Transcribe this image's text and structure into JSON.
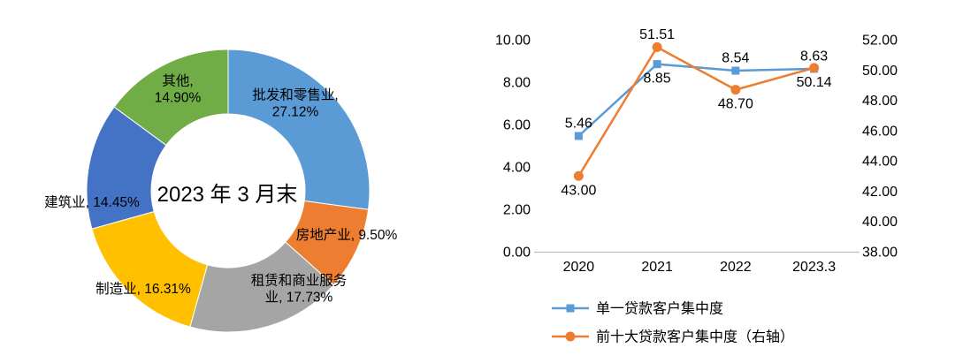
{
  "page": {
    "background": "#ffffff"
  },
  "chart_data": [
    {
      "type": "pie",
      "subtype": "donut",
      "center_label": "2023 年 3 月末",
      "legend_position": "none",
      "segments": [
        {
          "label": "批发和零售业",
          "value": 27.12,
          "color": "#5B9BD5",
          "label_lines": [
            "批发和零售业,",
            "27.12%"
          ]
        },
        {
          "label": "房地产业",
          "value": 9.5,
          "color": "#ED7D31",
          "label_lines": [
            "房地产业, 9.50%"
          ]
        },
        {
          "label": "租赁和商业服务业",
          "value": 17.73,
          "color": "#A5A5A5",
          "label_lines": [
            "租赁和商业服务",
            "业, 17.73%"
          ]
        },
        {
          "label": "制造业",
          "value": 16.31,
          "color": "#FFC000",
          "label_lines": [
            "制造业, 16.31%"
          ]
        },
        {
          "label": "建筑业",
          "value": 14.45,
          "color": "#4472C4",
          "label_lines": [
            "建筑业, 14.45%"
          ]
        },
        {
          "label": "其他",
          "value": 14.9,
          "color": "#70AD47",
          "label_lines": [
            "其他,",
            "14.90%"
          ]
        }
      ]
    },
    {
      "type": "line",
      "categories": [
        "2020",
        "2021",
        "2022",
        "2023.3"
      ],
      "left_axis": {
        "min": 0,
        "max": 10,
        "step": 2,
        "ticks": [
          "10.00",
          "8.00",
          "6.00",
          "4.00",
          "2.00",
          "0.00"
        ]
      },
      "right_axis": {
        "min": 38,
        "max": 52,
        "step": 2,
        "ticks": [
          "52.00",
          "50.00",
          "48.00",
          "46.00",
          "44.00",
          "42.00",
          "40.00",
          "38.00"
        ]
      },
      "grid": "off",
      "legend_position": "bottom",
      "series": [
        {
          "name": "单一贷款客户集中度",
          "axis": "left",
          "color": "#5B9BD5",
          "marker": "square",
          "values": [
            5.46,
            8.85,
            8.54,
            8.63
          ],
          "labels": [
            "5.46",
            "8.85",
            "8.54",
            "8.63"
          ],
          "label_pos": [
            "above",
            "below",
            "above",
            "above"
          ]
        },
        {
          "name": "前十大贷款客户集中度（右轴）",
          "axis": "right",
          "color": "#ED7D31",
          "marker": "circle",
          "values": [
            43.0,
            51.51,
            48.7,
            50.14
          ],
          "labels": [
            "43.00",
            "51.51",
            "48.70",
            "50.14"
          ],
          "label_pos": [
            "below",
            "above",
            "below",
            "below"
          ]
        }
      ]
    }
  ]
}
